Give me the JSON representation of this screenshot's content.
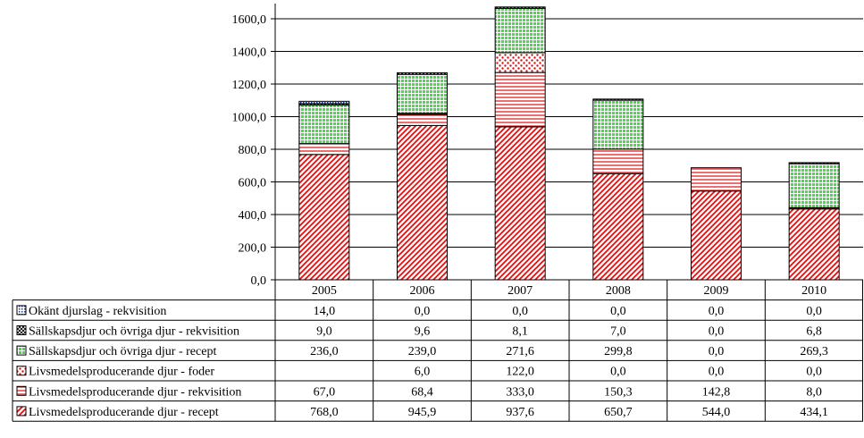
{
  "chart_data": {
    "type": "bar",
    "stacked": true,
    "categories": [
      "2005",
      "2006",
      "2007",
      "2008",
      "2009",
      "2010"
    ],
    "ylim": [
      0,
      1600
    ],
    "yticks": [
      0,
      200,
      400,
      600,
      800,
      1000,
      1200,
      1400,
      1600
    ],
    "ytick_labels": [
      "0,0",
      "200,0",
      "400,0",
      "600,0",
      "800,0",
      "1000,0",
      "1200,0",
      "1400,0",
      "1600,0"
    ],
    "grid": true,
    "legend": "data-table-below",
    "series": [
      {
        "name": "Livsmedelsproducerande djur - recept",
        "values": [
          768.0,
          945.9,
          937.6,
          650.7,
          544.0,
          434.1
        ],
        "labels": [
          "768,0",
          "945,9",
          "937,6",
          "650,7",
          "544,0",
          "434,1"
        ],
        "color": "#e01010",
        "pattern": "diagonal-hatch"
      },
      {
        "name": "Livsmedelsproducerande djur  - rekvisition",
        "values": [
          67.0,
          68.4,
          333.0,
          150.3,
          142.8,
          8.0
        ],
        "labels": [
          "67,0",
          "68,4",
          "333,0",
          "150,3",
          "142,8",
          "8,0"
        ],
        "color": "#e01010",
        "pattern": "horizontal-lines"
      },
      {
        "name": "Livsmedelsproducerande djur   - foder",
        "values": [
          null,
          6.0,
          122.0,
          0.0,
          0.0,
          0.0
        ],
        "labels": [
          "",
          "6,0",
          "122,0",
          "0,0",
          "0,0",
          "0,0"
        ],
        "color": "#e01010",
        "pattern": "dotted"
      },
      {
        "name": "Sällskapsdjur och övriga djur - recept",
        "values": [
          236.0,
          239.0,
          271.6,
          299.8,
          0.0,
          269.3
        ],
        "labels": [
          "236,0",
          "239,0",
          "271,6",
          "299,8",
          "0,0",
          "269,3"
        ],
        "color": "#33cc33",
        "pattern": "grid"
      },
      {
        "name": "Sällskapsdjur och övriga djur - rekvisition",
        "values": [
          9.0,
          9.6,
          8.1,
          7.0,
          0.0,
          6.8
        ],
        "labels": [
          "9,0",
          "9,6",
          "8,1",
          "7,0",
          "0,0",
          "6,8"
        ],
        "color": "#000000",
        "pattern": "cross-hatch"
      },
      {
        "name": "Okänt djurslag - rekvisition",
        "values": [
          14.0,
          0.0,
          0.0,
          0.0,
          0.0,
          0.0
        ],
        "labels": [
          "14,0",
          "0,0",
          "0,0",
          "0,0",
          "0,0",
          "0,0"
        ],
        "color": "#1a3a9a",
        "pattern": "dots"
      }
    ],
    "table_order": [
      5,
      4,
      3,
      2,
      1,
      0
    ]
  }
}
